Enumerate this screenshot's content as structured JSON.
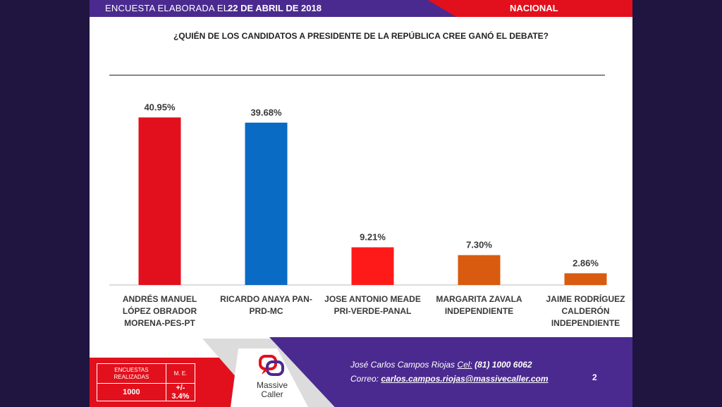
{
  "header": {
    "label": "ENCUESTA ELABORADA EL",
    "date": "22 DE ABRIL DE 2018",
    "scope": "NACIONAL"
  },
  "colors": {
    "purple": "#4b2a8f",
    "red": "#e2101c",
    "bar_morena": "#e2101c",
    "bar_pan": "#0a6bc4",
    "bar_pri": "#ff1a1a",
    "bar_ind": "#d95b0f"
  },
  "chart_data": {
    "type": "bar",
    "title": "¿QUIÉN DE LOS CANDIDATOS A PRESIDENTE DE LA REPÚBLICA CREE GANÓ EL DEBATE?",
    "xlabel": "",
    "ylabel": "",
    "ylim": [
      0,
      50
    ],
    "categories": [
      [
        "ANDRÉS MANUEL",
        "LÓPEZ OBRADOR",
        "MORENA-PES-PT"
      ],
      [
        "RICARDO ANAYA PAN-",
        "PRD-MC"
      ],
      [
        "JOSE ANTONIO MEADE",
        "PRI-VERDE-PANAL"
      ],
      [
        "MARGARITA ZAVALA",
        "INDEPENDIENTE"
      ],
      [
        "JAIME RODRÍGUEZ",
        "CALDERÓN",
        "INDEPENDIENTE"
      ]
    ],
    "values": [
      40.95,
      39.68,
      9.21,
      7.3,
      2.86
    ],
    "value_labels": [
      "40.95%",
      "39.68%",
      "9.21%",
      "7.30%",
      "2.86%"
    ],
    "bar_colors": [
      "#e2101c",
      "#0a6bc4",
      "#ff1a1a",
      "#d95b0f",
      "#d95b0f"
    ]
  },
  "footer": {
    "stats_header_1": "ENCUESTAS REALIZADAS",
    "stats_header_2": "M. E.",
    "stats_value_1": "1000",
    "stats_value_2": "+/- 3.4%",
    "logo_line1": "Massive",
    "logo_line2": "Caller",
    "contact_name": "José Carlos Campos Riojas",
    "contact_cel_label": "Cel:",
    "contact_cel": "(81) 1000 6062",
    "contact_mail_label": "Correo:",
    "contact_mail": "carlos.campos.riojas@massivecaller.com",
    "page_number": "2"
  }
}
